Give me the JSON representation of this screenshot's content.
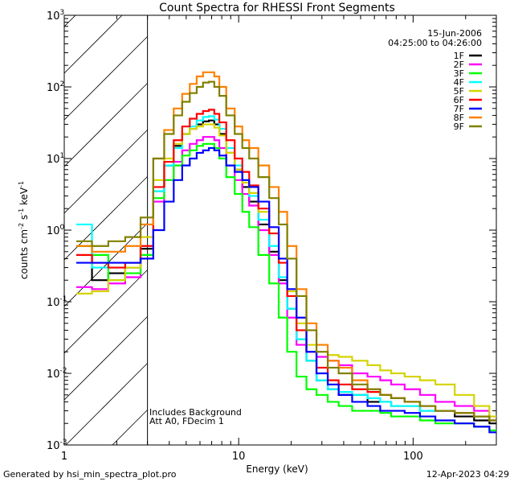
{
  "chart_data": {
    "type": "line",
    "title": "Count Spectra for RHESSI Front Segments",
    "xlabel": "Energy (keV)",
    "ylabel": "counts cm^-2 s^-1 keV^-1",
    "xscale": "log",
    "yscale": "log",
    "xlim": [
      1,
      300
    ],
    "ylim": [
      0.001,
      1000
    ],
    "x_ticklabels": [
      "1",
      "10",
      "100"
    ],
    "y_ticklabels": [
      "10-3",
      "10-2",
      "10-1",
      "100",
      "101",
      "102",
      "103"
    ],
    "date": "15-Jun-2006",
    "time_range": "04:25:00 to 04:26:00",
    "attenuator_threshold_kev": 3,
    "annotations": [
      "Includes Background",
      "Att A0, FDecim 1"
    ],
    "legend_position": "top-right",
    "x": [
      1.3,
      1.6,
      2.0,
      2.5,
      3.0,
      3.5,
      4.0,
      4.5,
      5.0,
      5.5,
      6.0,
      6.5,
      7.0,
      7.5,
      8.0,
      9.0,
      10.0,
      11.0,
      12.0,
      14.0,
      16.0,
      18.0,
      20.0,
      23.0,
      26.0,
      30.0,
      35.0,
      40.0,
      50.0,
      60.0,
      70.0,
      80.0,
      100.0,
      120.0,
      150.0,
      200.0,
      250.0,
      300.0
    ],
    "series": [
      {
        "name": "1F",
        "color": "#000000",
        "values": [
          0.6,
          0.2,
          0.25,
          0.3,
          0.55,
          3.5,
          8,
          15,
          22,
          26,
          30,
          33,
          34,
          30,
          22,
          12,
          7,
          4,
          2.5,
          1.2,
          0.5,
          0.2,
          0.08,
          0.03,
          0.015,
          0.008,
          0.006,
          0.005,
          0.005,
          0.004,
          0.004,
          0.0035,
          0.0035,
          0.003,
          0.003,
          0.0025,
          0.0022,
          0.002
        ]
      },
      {
        "name": "2F",
        "color": "#ff00ff",
        "values": [
          0.16,
          0.15,
          0.18,
          0.22,
          0.4,
          2.5,
          5,
          9,
          13,
          16,
          18,
          20,
          20,
          18,
          14,
          8,
          5,
          3.2,
          2.2,
          1.0,
          0.45,
          0.18,
          0.06,
          0.025,
          0.02,
          0.017,
          0.015,
          0.013,
          0.01,
          0.009,
          0.008,
          0.007,
          0.006,
          0.005,
          0.004,
          0.0035,
          0.003,
          0.0025
        ]
      },
      {
        "name": "3F",
        "color": "#00ff00",
        "values": [
          0.6,
          0.45,
          0.2,
          0.25,
          0.45,
          2.8,
          5,
          8,
          11,
          13,
          15,
          16,
          16,
          14,
          10,
          5.5,
          3.2,
          1.8,
          1.1,
          0.45,
          0.18,
          0.06,
          0.02,
          0.009,
          0.006,
          0.005,
          0.004,
          0.0035,
          0.003,
          0.003,
          0.0028,
          0.0025,
          0.0025,
          0.0022,
          0.002,
          0.002,
          0.0018,
          0.0016
        ]
      },
      {
        "name": "4F",
        "color": "#00ffff",
        "values": [
          1.2,
          0.3,
          0.3,
          0.35,
          0.6,
          3.5,
          8,
          14,
          22,
          28,
          34,
          38,
          39,
          35,
          26,
          14,
          8,
          5,
          3,
          1.4,
          0.6,
          0.22,
          0.08,
          0.03,
          0.015,
          0.008,
          0.006,
          0.0055,
          0.005,
          0.0045,
          0.004,
          0.0035,
          0.0035,
          0.003,
          0.003,
          0.0028,
          0.0025,
          0.0022
        ]
      },
      {
        "name": "5F",
        "color": "#d4d400",
        "values": [
          0.13,
          0.14,
          0.2,
          0.3,
          0.8,
          5,
          10,
          16,
          22,
          26,
          28,
          30,
          30,
          27,
          21,
          12,
          7,
          4.6,
          3.3,
          1.8,
          0.9,
          0.4,
          0.14,
          0.05,
          0.025,
          0.02,
          0.018,
          0.017,
          0.015,
          0.013,
          0.011,
          0.01,
          0.009,
          0.008,
          0.007,
          0.005,
          0.0035,
          0.0025
        ]
      },
      {
        "name": "6F",
        "color": "#ff0000",
        "values": [
          0.45,
          0.35,
          0.3,
          0.35,
          0.6,
          4,
          9,
          18,
          28,
          36,
          42,
          46,
          48,
          42,
          32,
          18,
          10,
          6.5,
          4.2,
          2,
          0.9,
          0.35,
          0.12,
          0.04,
          0.02,
          0.012,
          0.008,
          0.007,
          0.006,
          0.0055,
          0.005,
          0.0045,
          0.004,
          0.0035,
          0.003,
          0.0028,
          0.0025,
          0.0022
        ]
      },
      {
        "name": "7F",
        "color": "#0000ff",
        "values": [
          0.35,
          0.35,
          0.35,
          0.35,
          0.4,
          1.0,
          2.5,
          5,
          8,
          10,
          12,
          13,
          14,
          13,
          11,
          8,
          6.5,
          5,
          4,
          2.5,
          1.1,
          0.4,
          0.15,
          0.06,
          0.02,
          0.01,
          0.007,
          0.005,
          0.004,
          0.0035,
          0.003,
          0.003,
          0.0028,
          0.0025,
          0.0022,
          0.002,
          0.0018,
          0.0015
        ]
      },
      {
        "name": "8F",
        "color": "#ff8000",
        "values": [
          0.6,
          0.5,
          0.5,
          0.6,
          1.2,
          10,
          25,
          50,
          80,
          110,
          140,
          160,
          160,
          140,
          100,
          50,
          28,
          18,
          14,
          8,
          4,
          1.8,
          0.6,
          0.15,
          0.05,
          0.025,
          0.015,
          0.012,
          0.008,
          0.006,
          0.005,
          0.0045,
          0.004,
          0.0035,
          0.003,
          0.0028,
          0.0025,
          0.0022
        ]
      },
      {
        "name": "9F",
        "color": "#808000",
        "values": [
          0.7,
          0.6,
          0.7,
          0.8,
          1.5,
          10,
          22,
          40,
          62,
          82,
          100,
          115,
          118,
          100,
          75,
          40,
          22,
          14,
          10,
          5.5,
          2.8,
          1.2,
          0.4,
          0.12,
          0.04,
          0.02,
          0.012,
          0.01,
          0.007,
          0.006,
          0.005,
          0.0045,
          0.004,
          0.0035,
          0.003,
          0.0028,
          0.0025,
          0.0022
        ]
      }
    ]
  },
  "footer": {
    "generated_by": "Generated by hsi_min_spectra_plot.pro",
    "timestamp": "12-Apr-2023 04:29"
  }
}
